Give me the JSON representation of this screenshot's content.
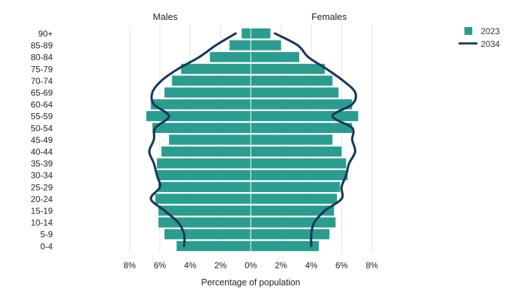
{
  "chart_data": {
    "type": "bar",
    "subtype": "population-pyramid",
    "xlabel": "Percentage of population",
    "side_labels": {
      "left": "Males",
      "right": "Females"
    },
    "xlim": [
      -8,
      8
    ],
    "x_ticks": [
      -8,
      -6,
      -4,
      -2,
      0,
      2,
      4,
      6,
      8
    ],
    "x_tick_labels": [
      "8%",
      "6%",
      "4%",
      "2%",
      "0%",
      "2%",
      "4%",
      "6%",
      "8%"
    ],
    "grid": true,
    "legend_position": "top-right",
    "categories": [
      "90+",
      "85-89",
      "80-84",
      "75-79",
      "70-74",
      "65-69",
      "60-64",
      "55-59",
      "50-54",
      "45-49",
      "40-44",
      "35-39",
      "30-34",
      "25-29",
      "20-24",
      "15-19",
      "10-14",
      "5-9",
      "0-4"
    ],
    "series": [
      {
        "name": "2023",
        "mark": "bar",
        "color": "#2a9d8f",
        "males": [
          0.6,
          1.4,
          2.7,
          4.6,
          5.2,
          5.7,
          6.6,
          6.9,
          6.5,
          5.4,
          5.9,
          6.2,
          6.2,
          6.1,
          6.3,
          6.1,
          6.1,
          5.7,
          4.9
        ],
        "females": [
          1.3,
          2.0,
          3.2,
          4.9,
          5.4,
          5.8,
          6.7,
          7.1,
          6.7,
          5.4,
          6.0,
          6.3,
          6.4,
          5.9,
          5.7,
          5.5,
          5.6,
          5.2,
          4.5
        ]
      },
      {
        "name": "2034",
        "mark": "line",
        "color": "#17375e",
        "males": [
          1.0,
          2.3,
          3.4,
          4.8,
          5.9,
          6.5,
          6.4,
          5.4,
          6.3,
          6.4,
          6.7,
          6.4,
          6.2,
          6.0,
          6.6,
          5.7,
          4.8,
          4.4,
          4.4
        ],
        "females": [
          1.6,
          3.1,
          3.8,
          5.0,
          6.1,
          6.9,
          6.7,
          5.4,
          6.7,
          6.7,
          6.9,
          6.5,
          6.3,
          6.0,
          6.0,
          4.9,
          4.2,
          4.0,
          4.0
        ]
      }
    ]
  }
}
